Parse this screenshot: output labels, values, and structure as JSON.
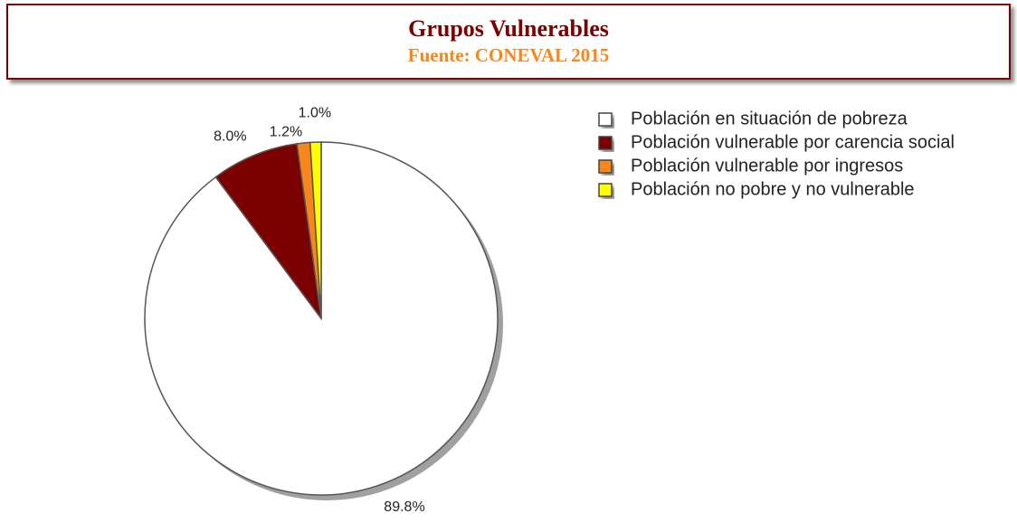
{
  "chart_data": {
    "type": "pie",
    "title": "Grupos Vulnerables",
    "subtitle": "Fuente: CONEVAL 2015",
    "categories": [
      "Población en situación de pobreza",
      "Población vulnerable por carencia social",
      "Población vulnerable por ingresos",
      "Población no pobre y no vulnerable"
    ],
    "values": [
      89.8,
      8.0,
      1.2,
      1.0
    ],
    "value_labels": [
      "89.8%",
      "8.0%",
      "1.2%",
      "1.0%"
    ],
    "colors": [
      "#ffffff",
      "#7b0000",
      "#f7861b",
      "#ffff00"
    ],
    "legend": "right"
  }
}
